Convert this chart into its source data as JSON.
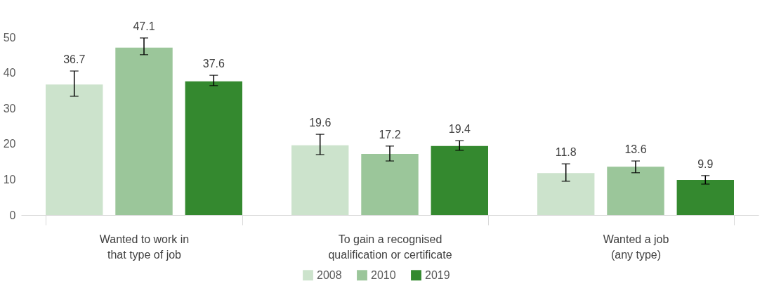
{
  "chart_data": {
    "type": "bar",
    "categories": [
      "Wanted to work in that type of job",
      "To gain a recognised qualification or certificate",
      "Wanted a job (any type)"
    ],
    "series": [
      {
        "name": "2008",
        "color": "#cce3cc",
        "values": [
          36.7,
          19.6,
          11.8
        ],
        "errors": [
          [
            33.4,
            40.5
          ],
          [
            17.0,
            22.7
          ],
          [
            9.5,
            14.4
          ]
        ]
      },
      {
        "name": "2010",
        "color": "#9bc69a",
        "values": [
          47.1,
          17.2,
          13.6
        ],
        "errors": [
          [
            45.1,
            49.8
          ],
          [
            15.2,
            19.4
          ],
          [
            11.9,
            15.2
          ]
        ]
      },
      {
        "name": "2019",
        "color": "#34892f",
        "values": [
          37.6,
          19.4,
          9.9
        ],
        "errors": [
          [
            36.4,
            39.3
          ],
          [
            18.2,
            20.9
          ],
          [
            8.7,
            11.1
          ]
        ]
      }
    ],
    "ylim": [
      0,
      50
    ],
    "yticks": [
      0,
      10,
      20,
      30,
      40,
      50
    ],
    "grid": false,
    "legend": "bottom",
    "data_labels": true
  }
}
